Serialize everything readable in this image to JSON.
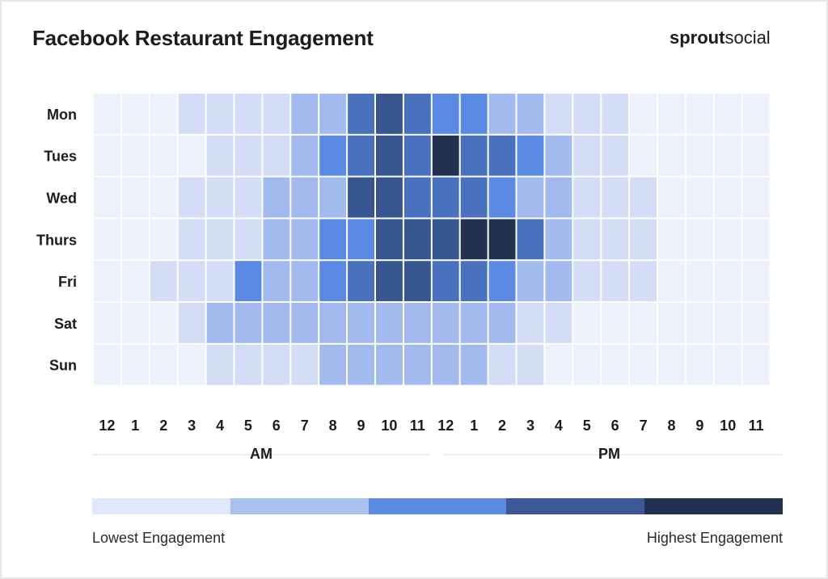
{
  "chart_data": {
    "type": "heatmap",
    "title": "Facebook Restaurant Engagement",
    "rows": [
      "Mon",
      "Tues",
      "Wed",
      "Thurs",
      "Fri",
      "Sat",
      "Sun"
    ],
    "columns": [
      "12",
      "1",
      "2",
      "3",
      "4",
      "5",
      "6",
      "7",
      "8",
      "9",
      "10",
      "11",
      "12",
      "1",
      "2",
      "3",
      "4",
      "5",
      "6",
      "7",
      "8",
      "9",
      "10",
      "11"
    ],
    "column_groups": [
      {
        "label": "AM",
        "span": 12
      },
      {
        "label": "PM",
        "span": 12
      }
    ],
    "values": [
      [
        0,
        0,
        0,
        1,
        1,
        1,
        1,
        2,
        2,
        4,
        5,
        4,
        3,
        3,
        2,
        2,
        1,
        1,
        1,
        0,
        0,
        0,
        0,
        0
      ],
      [
        0,
        0,
        0,
        0,
        1,
        1,
        1,
        2,
        3,
        4,
        5,
        4,
        6,
        4,
        4,
        3,
        2,
        1,
        1,
        0,
        0,
        0,
        0,
        0
      ],
      [
        0,
        0,
        0,
        1,
        1,
        1,
        2,
        2,
        2,
        5,
        5,
        4,
        4,
        4,
        3,
        2,
        2,
        1,
        1,
        1,
        0,
        0,
        0,
        0
      ],
      [
        0,
        0,
        0,
        1,
        1,
        1,
        2,
        2,
        3,
        3,
        5,
        5,
        5,
        6,
        6,
        4,
        2,
        1,
        1,
        1,
        0,
        0,
        0,
        0
      ],
      [
        0,
        0,
        1,
        1,
        1,
        3,
        2,
        2,
        3,
        4,
        5,
        5,
        4,
        4,
        3,
        2,
        2,
        1,
        1,
        1,
        0,
        0,
        0,
        0
      ],
      [
        0,
        0,
        0,
        1,
        2,
        2,
        2,
        2,
        2,
        2,
        2,
        2,
        2,
        2,
        2,
        1,
        1,
        0,
        0,
        0,
        0,
        0,
        0,
        0
      ],
      [
        0,
        0,
        0,
        0,
        1,
        1,
        1,
        1,
        2,
        2,
        2,
        2,
        2,
        2,
        1,
        1,
        0,
        0,
        0,
        0,
        0,
        0,
        0,
        0
      ]
    ],
    "scale_colors": [
      "#edf1fb",
      "#d3ddf5",
      "#a3baee",
      "#5a8ae3",
      "#4a71be",
      "#37558e",
      "#21314f"
    ],
    "legend": {
      "colors": [
        "#dfe9fb",
        "#a9c1ee",
        "#5a8ae3",
        "#3c5898",
        "#21314f"
      ],
      "low_label": "Lowest Engagement",
      "high_label": "Highest Engagement"
    }
  },
  "brand": {
    "part1": "sprout",
    "part2": "social"
  }
}
